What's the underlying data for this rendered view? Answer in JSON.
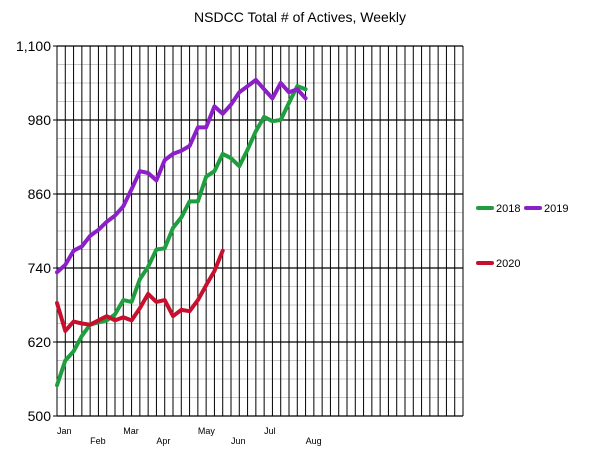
{
  "chart_data": {
    "type": "line",
    "title": "NSDCC Total # of Actives, Weekly",
    "xlabel": "",
    "ylabel": "",
    "ylim": [
      500,
      1100
    ],
    "y_ticks": [
      "1,100",
      "980",
      "860",
      "740",
      "620",
      "500"
    ],
    "y_tick_values": [
      1100,
      980,
      860,
      740,
      620,
      500
    ],
    "x_ticks": [
      {
        "label": "Jan",
        "week": 1
      },
      {
        "label": "Feb",
        "week": 5
      },
      {
        "label": "Mar",
        "week": 9
      },
      {
        "label": "Apr",
        "week": 13
      },
      {
        "label": "May",
        "week": 18
      },
      {
        "label": "Jun",
        "week": 22
      },
      {
        "label": "Jul",
        "week": 26
      },
      {
        "label": "Aug",
        "week": 31
      }
    ],
    "x_range": [
      1,
      50
    ],
    "grid": true,
    "legend_placement": "right",
    "series": [
      {
        "name": "2018",
        "color": "#1e9e3e",
        "x": [
          1,
          2,
          3,
          4,
          5,
          6,
          7,
          8,
          9,
          10,
          11,
          12,
          13,
          14,
          15,
          16,
          17,
          18,
          19,
          20,
          21,
          22,
          23,
          24,
          25,
          26,
          27,
          28,
          29,
          30,
          31
        ],
        "values": [
          550,
          590,
          605,
          630,
          648,
          652,
          655,
          665,
          688,
          685,
          722,
          742,
          770,
          772,
          805,
          822,
          848,
          848,
          888,
          897,
          925,
          918,
          905,
          932,
          962,
          985,
          978,
          980,
          1008,
          1035,
          1030
        ]
      },
      {
        "name": "2019",
        "color": "#8c1fc9",
        "x": [
          1,
          2,
          3,
          4,
          5,
          6,
          7,
          8,
          9,
          10,
          11,
          12,
          13,
          14,
          15,
          16,
          17,
          18,
          19,
          20,
          21,
          22,
          23,
          24,
          25,
          26,
          27,
          28,
          29,
          30,
          31
        ],
        "values": [
          733,
          745,
          768,
          775,
          792,
          802,
          815,
          825,
          840,
          868,
          897,
          894,
          882,
          915,
          925,
          930,
          938,
          968,
          968,
          1002,
          990,
          1005,
          1025,
          1035,
          1045,
          1030,
          1015,
          1040,
          1025,
          1030,
          1015
        ]
      },
      {
        "name": "2020",
        "color": "#c8102e",
        "x": [
          1,
          2,
          3,
          4,
          5,
          6,
          7,
          8,
          9,
          10,
          11,
          12,
          13,
          14,
          15,
          16,
          17,
          18,
          19,
          20,
          21
        ],
        "values": [
          683,
          638,
          653,
          650,
          648,
          655,
          662,
          655,
          660,
          655,
          675,
          698,
          685,
          688,
          662,
          672,
          670,
          688,
          712,
          735,
          768
        ]
      }
    ]
  }
}
